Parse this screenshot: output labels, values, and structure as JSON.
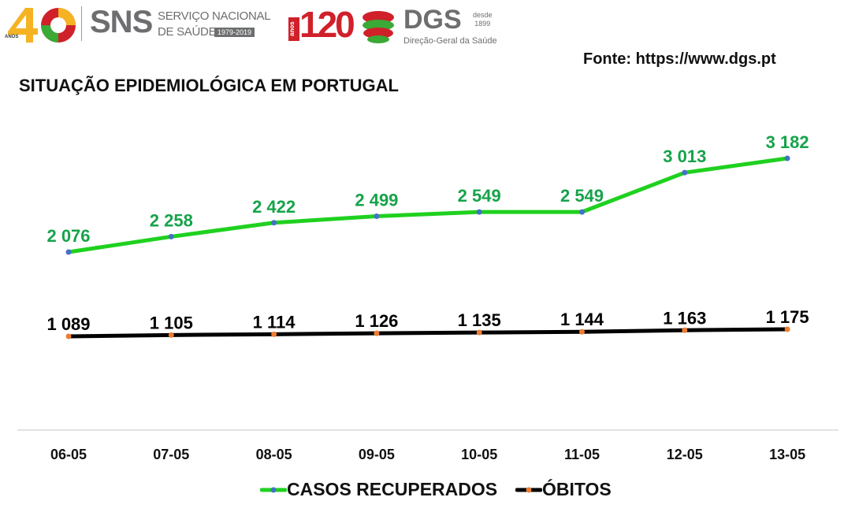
{
  "header": {
    "logo_40": {
      "number": "40",
      "caption": "ANOS"
    },
    "sns": {
      "acronym": "SNS",
      "line1": "SERVIÇO NACIONAL",
      "line2": "DE SAÚDE",
      "years": "1979-2019"
    },
    "dgs_anniversary": {
      "number": "120",
      "caption": "anos"
    },
    "dgs": {
      "acronym": "DGS",
      "since": "desde\n1899",
      "full_name": "Direção-Geral da Saúde"
    }
  },
  "source_text": "Fonte: https://www.dgs.pt",
  "chart_data": {
    "type": "line",
    "title": "SITUAÇÃO EPIDEMIOLÓGICA EM PORTUGAL",
    "xlabel": "",
    "ylabel": "",
    "categories": [
      "06-05",
      "07-05",
      "08-05",
      "09-05",
      "10-05",
      "11-05",
      "12-05",
      "13-05"
    ],
    "series": [
      {
        "name": "CASOS RECUPERADOS",
        "color": "#1fd11f",
        "marker_color": "#4472c4",
        "label_color": "#16a34a",
        "values": [
          2076,
          2258,
          2422,
          2499,
          2549,
          2549,
          3013,
          3182
        ],
        "labels": [
          "2 076",
          "2 258",
          "2 422",
          "2 499",
          "2 549",
          "2 549",
          "3 013",
          "3 182"
        ]
      },
      {
        "name": "ÓBITOS",
        "color": "#000000",
        "marker_color": "#ed7d31",
        "label_color": "#000000",
        "values": [
          1089,
          1105,
          1114,
          1126,
          1135,
          1144,
          1163,
          1175
        ],
        "labels": [
          "1 089",
          "1 105",
          "1 114",
          "1 126",
          "1 135",
          "1 144",
          "1 163",
          "1 175"
        ]
      }
    ],
    "grid": false,
    "legend_position": "bottom-center"
  },
  "colors": {
    "green_line": "#1fd11f",
    "green_label": "#16a34a",
    "black_line": "#000000",
    "blue_marker": "#4472c4",
    "orange_marker": "#ed7d31",
    "axis": "#d9d9d9",
    "sns_gray": "#6d6e70",
    "dgs_red": "#d0202a"
  }
}
